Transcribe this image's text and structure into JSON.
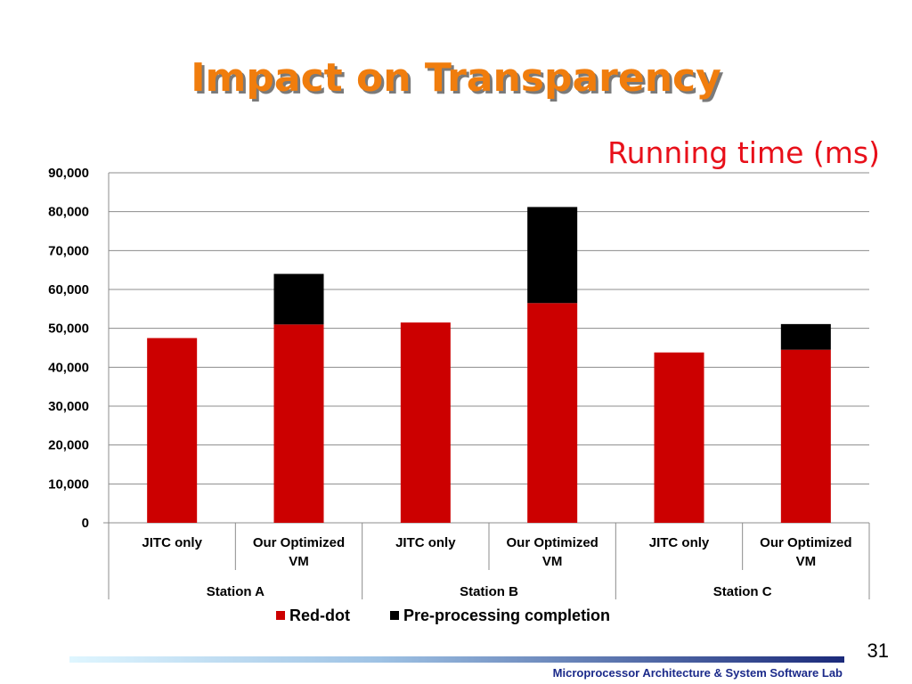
{
  "slide": {
    "title": "Impact on Transparency",
    "page_number": "31",
    "footer": "Microprocessor Architecture & System Software Lab"
  },
  "colors": {
    "red_dot": "#cc0000",
    "pre_processing": "#000000",
    "title": "#f07d0d",
    "subtitle": "#e8101a"
  },
  "chart_data": {
    "type": "bar",
    "stacked": true,
    "title": "Running time (ms)",
    "ylim": [
      0,
      90000
    ],
    "yticks": [
      0,
      10000,
      20000,
      30000,
      40000,
      50000,
      60000,
      70000,
      80000,
      90000
    ],
    "ytick_labels": [
      "0",
      "10,000",
      "20,000",
      "30,000",
      "40,000",
      "50,000",
      "60,000",
      "70,000",
      "80,000",
      "90,000"
    ],
    "categories": [
      {
        "label": [
          "JITC only"
        ],
        "group": "Station A"
      },
      {
        "label": [
          "Our Optimized",
          "VM"
        ],
        "group": "Station A"
      },
      {
        "label": [
          "JITC only"
        ],
        "group": "Station B"
      },
      {
        "label": [
          "Our Optimized",
          "VM"
        ],
        "group": "Station B"
      },
      {
        "label": [
          "JITC only"
        ],
        "group": "Station C"
      },
      {
        "label": [
          "Our Optimized",
          "VM"
        ],
        "group": "Station C"
      }
    ],
    "groups": [
      "Station A",
      "Station B",
      "Station C"
    ],
    "series": [
      {
        "name": "Red-dot",
        "color": "#cc0000",
        "values": [
          47500,
          51000,
          51500,
          56500,
          43800,
          44500
        ]
      },
      {
        "name": "Pre-processing completion",
        "color": "#000000",
        "values": [
          0,
          13000,
          0,
          24700,
          0,
          6600
        ]
      }
    ],
    "grid": true,
    "legend": "bottom"
  }
}
